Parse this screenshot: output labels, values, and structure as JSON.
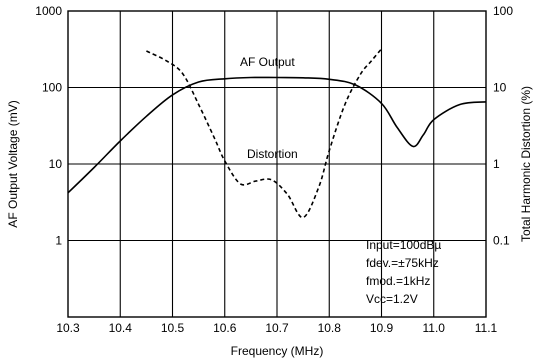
{
  "chart_data": {
    "type": "line",
    "xlabel": "Frequency (MHz)",
    "ylabel_left": "AF Output Voltage (mV)",
    "ylabel_right": "Total Harmonic Distortion (%)",
    "x_ticks": [
      "10.3",
      "10.4",
      "10.5",
      "10.6",
      "10.7",
      "10.8",
      "10.9",
      "11.0",
      "11.1"
    ],
    "y_left_ticks": [
      "1000",
      "100",
      "10",
      "1"
    ],
    "y_right_ticks": [
      "100",
      "10",
      "1",
      "0.1"
    ],
    "xlim": [
      10.3,
      11.1
    ],
    "ylim_left": [
      0.1,
      1000
    ],
    "ylim_right": [
      0.01,
      100
    ],
    "y_scale": "log",
    "grid": true,
    "series": [
      {
        "name": "AF Output",
        "axis": "left",
        "style": "solid",
        "x": [
          10.3,
          10.35,
          10.4,
          10.45,
          10.5,
          10.55,
          10.6,
          10.65,
          10.7,
          10.75,
          10.8,
          10.85,
          10.9,
          10.93,
          10.96,
          10.98,
          11.0,
          11.05,
          11.1
        ],
        "y": [
          4.2,
          9,
          20,
          42,
          80,
          118,
          130,
          135,
          135,
          134,
          128,
          108,
          62,
          30,
          17,
          24,
          38,
          60,
          65
        ]
      },
      {
        "name": "Distortion",
        "axis": "right",
        "style": "dashed",
        "x": [
          10.45,
          10.49,
          10.52,
          10.55,
          10.58,
          10.6,
          10.63,
          10.66,
          10.69,
          10.72,
          10.75,
          10.78,
          10.8,
          10.83,
          10.86,
          10.88,
          10.9
        ],
        "y": [
          30,
          22,
          15,
          6,
          2.2,
          1.1,
          0.55,
          0.6,
          0.62,
          0.4,
          0.2,
          0.5,
          1.5,
          6,
          15,
          22,
          32
        ]
      }
    ],
    "annotations": [
      "AF Output",
      "Distortion"
    ],
    "conditions": [
      "Input=100dBµ",
      "fdev.=±75kHz",
      "fmod.=1kHz",
      "Vcc=1.2V"
    ]
  }
}
